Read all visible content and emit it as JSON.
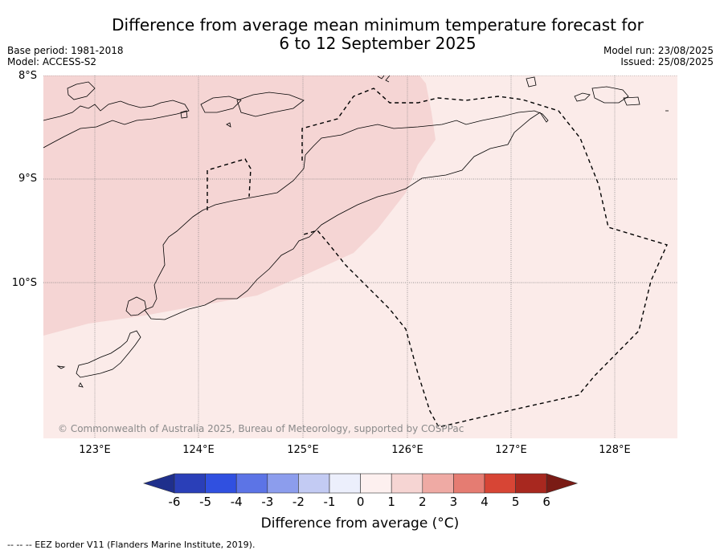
{
  "title": {
    "line1": "Difference from average mean minimum temperature forecast for",
    "line2": "6 to 12 September 2025"
  },
  "meta": {
    "base_period": "Base period: 1981-2018",
    "model": "Model: ACCESS-S2",
    "model_run": "Model run: 23/08/2025",
    "issued": "Issued: 25/08/2025"
  },
  "map": {
    "lat_labels": [
      "8°S",
      "9°S",
      "10°S"
    ],
    "lon_labels": [
      "123°E",
      "124°E",
      "125°E",
      "126°E",
      "127°E",
      "128°E"
    ],
    "copyright": "© Commonwealth of Australia 2025, Bureau of Meteorology, supported by COSPPac",
    "colors": {
      "zone_1_2": "#f5d5d4",
      "zone_0_1": "#fbebe9",
      "coast": "#000000",
      "grid": "#777777"
    }
  },
  "colorbar": {
    "ticks": [
      "-6",
      "-5",
      "-4",
      "-3",
      "-2",
      "-1",
      "0",
      "1",
      "2",
      "3",
      "4",
      "5",
      "6"
    ],
    "colors": [
      "#1f2f8c",
      "#2a3fb8",
      "#3050e0",
      "#5c74e6",
      "#8c9ded",
      "#c3cbf3",
      "#eceffc",
      "#fdf0ef",
      "#f6d5d3",
      "#efaaa4",
      "#e57c72",
      "#d74535",
      "#a8281f",
      "#7a1b15"
    ],
    "label": "Difference from average (°C)"
  },
  "footnote": "-- -- -- EEZ border V11 (Flanders Marine Institute, 2019)."
}
